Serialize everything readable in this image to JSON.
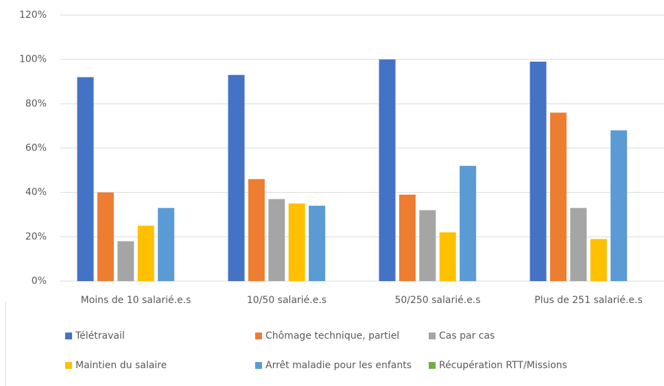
{
  "chart_data": {
    "type": "bar",
    "categories": [
      "Moins de 10 salarié.e.s",
      "10/50 salarié.e.s",
      "50/250 salarié.e.s",
      "Plus de 251 salarié.e.s"
    ],
    "series": [
      {
        "name": "Télétravail",
        "color": "#4472c4",
        "values": [
          92,
          93,
          100,
          99
        ]
      },
      {
        "name": "Chômage technique, partiel",
        "color": "#ed7d31",
        "values": [
          40,
          46,
          39,
          76
        ]
      },
      {
        "name": "Cas par cas",
        "color": "#a5a5a5",
        "values": [
          18,
          37,
          32,
          33
        ]
      },
      {
        "name": "Maintien du salaire",
        "color": "#ffc000",
        "values": [
          25,
          35,
          22,
          19
        ]
      },
      {
        "name": "Arrêt maladie pour les enfants",
        "color": "#5b9bd5",
        "values": [
          33,
          34,
          52,
          68
        ]
      },
      {
        "name": "Récupération RTT/Missions",
        "color": "#70ad47",
        "values": [
          0,
          0,
          0,
          0
        ]
      }
    ],
    "ylim": [
      0,
      120
    ],
    "yticks": [
      {
        "value": 0,
        "label": "0%"
      },
      {
        "value": 20,
        "label": "20%"
      },
      {
        "value": 40,
        "label": "40%"
      },
      {
        "value": 60,
        "label": "60%"
      },
      {
        "value": 80,
        "label": "80%"
      },
      {
        "value": 100,
        "label": "100%"
      },
      {
        "value": 120,
        "label": "120%"
      }
    ],
    "grid": true,
    "legend": "bottom"
  }
}
